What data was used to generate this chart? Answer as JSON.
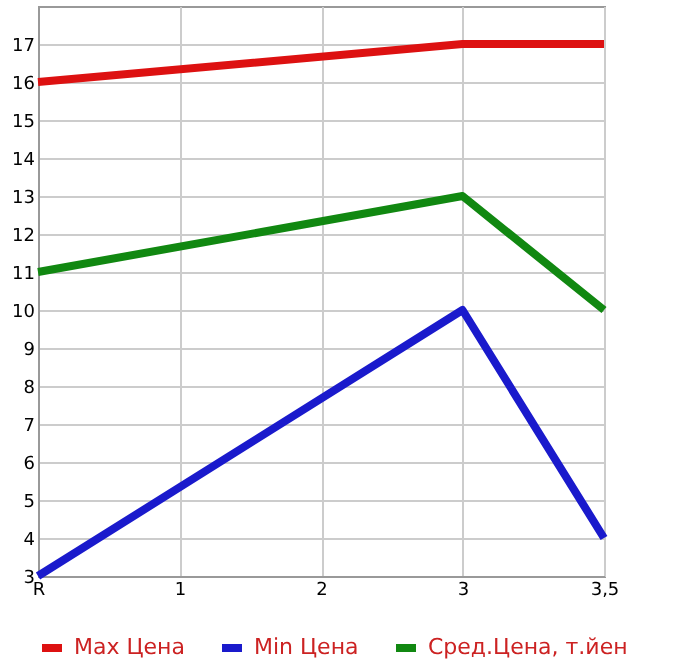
{
  "chart_data": {
    "type": "line",
    "categories": [
      "R",
      "1",
      "2",
      "3",
      "3,5"
    ],
    "series": [
      {
        "name": "Max Цена",
        "color": "#dd1111",
        "values": [
          16,
          null,
          null,
          17,
          17
        ]
      },
      {
        "name": "Min Цена",
        "color": "#1a1acc",
        "values": [
          3,
          null,
          null,
          10,
          4
        ]
      },
      {
        "name": "Сред.Цена, т.йен",
        "color": "#118811",
        "values": [
          11,
          null,
          null,
          13,
          10
        ]
      }
    ],
    "ylim": [
      3,
      18
    ],
    "yticks": [
      3,
      4,
      5,
      6,
      7,
      8,
      9,
      10,
      11,
      12,
      13,
      14,
      15,
      16,
      17
    ],
    "grid": true,
    "legend": "bottom",
    "marker": "none",
    "line_style": "solid"
  }
}
